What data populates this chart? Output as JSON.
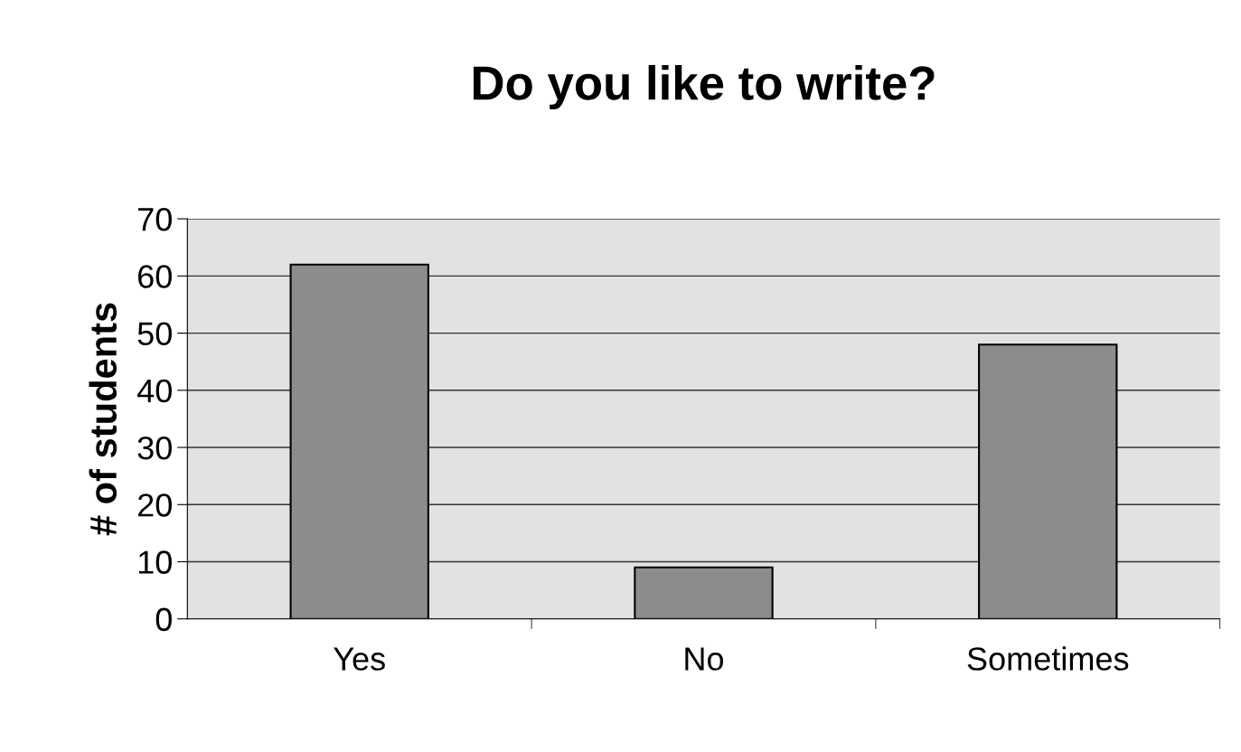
{
  "chart_data": {
    "type": "bar",
    "title": "Do you like to write?",
    "ylabel": "# of students",
    "categories": [
      "Yes",
      "No",
      "Sometimes"
    ],
    "values": [
      62,
      9,
      48
    ],
    "color": "#8c8c8c",
    "ylim": [
      0,
      70
    ],
    "yticks": [
      0,
      10,
      20,
      30,
      40,
      50,
      60,
      70
    ],
    "grid": "y"
  }
}
